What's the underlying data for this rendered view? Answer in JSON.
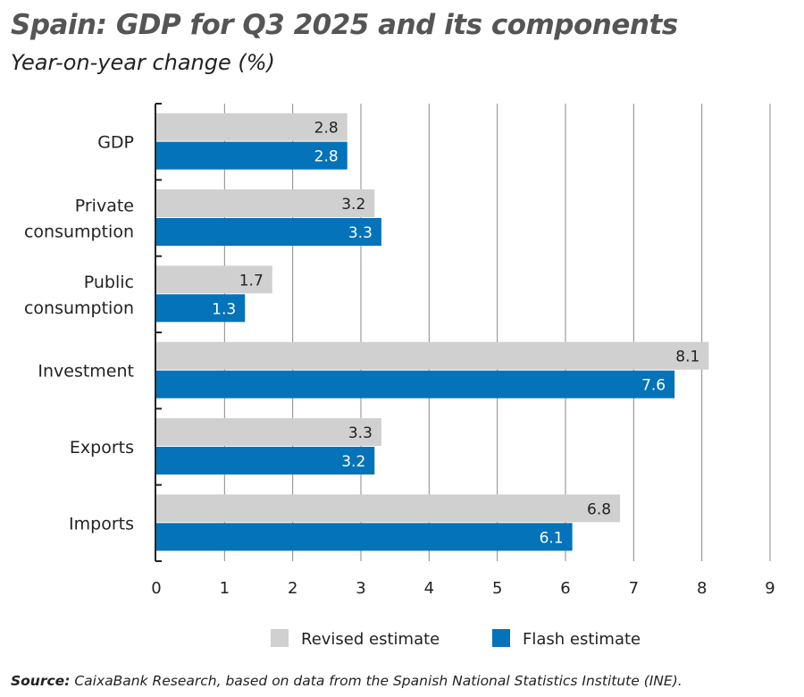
{
  "title": "Spain: GDP for Q3 2025 and its components",
  "subtitle": "Year-on-year change (%)",
  "source_label": "Source:",
  "source_text": "CaixaBank Research, based on data from the Spanish National Statistics Institute (INE).",
  "chart_data": {
    "type": "bar",
    "orientation": "horizontal",
    "categories": [
      [
        "GDP"
      ],
      [
        "Private",
        "consumption"
      ],
      [
        "Public",
        "consumption"
      ],
      [
        "Investment"
      ],
      [
        "Exports"
      ],
      [
        "Imports"
      ]
    ],
    "series": [
      {
        "name": "Revised estimate",
        "color": "#d0d0d0",
        "values": [
          2.8,
          3.2,
          1.7,
          8.1,
          3.3,
          6.8
        ]
      },
      {
        "name": "Flash estimate",
        "color": "#0473b9",
        "values": [
          2.8,
          3.3,
          1.3,
          7.6,
          3.2,
          6.1
        ]
      }
    ],
    "xlim": [
      0,
      9
    ],
    "xticks": [
      0,
      1,
      2,
      3,
      4,
      5,
      6,
      7,
      8,
      9
    ],
    "grid": "vertical",
    "legend": "bottom"
  }
}
